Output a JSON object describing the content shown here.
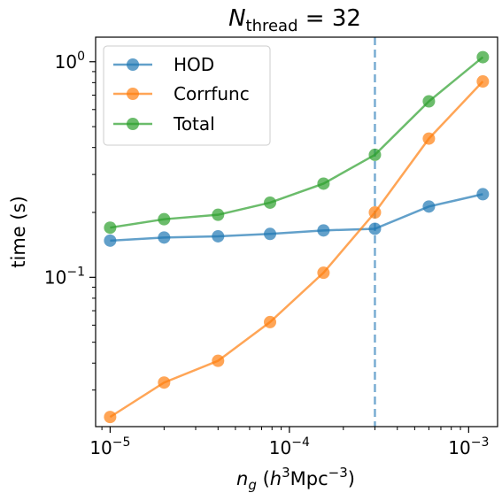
{
  "chart_data": {
    "type": "line",
    "title_base": "N",
    "title_sub": "thread",
    "title_rest": " = 32",
    "xlabel_base": "n",
    "xlabel_sub": "g",
    "xlabel_rest_1": " (",
    "xlabel_h": "h",
    "xlabel_h_exp": "3",
    "xlabel_mpc": "Mpc",
    "xlabel_mpc_exp": "−3",
    "xlabel_close": ")",
    "ylabel": "time (s)",
    "x_scale": "log",
    "y_scale": "log",
    "xlim": [
      8.3e-06,
      0.00145
    ],
    "ylim": [
      0.0203,
      1.3
    ],
    "x_ticks": [
      {
        "value": 1e-05,
        "base": "10",
        "exp": "−5"
      },
      {
        "value": 0.0001,
        "base": "10",
        "exp": "−4"
      },
      {
        "value": 0.001,
        "base": "10",
        "exp": "−3"
      }
    ],
    "y_ticks": [
      {
        "value": 0.1,
        "base": "10",
        "exp": "−1"
      },
      {
        "value": 1,
        "base": "10",
        "exp": "0"
      }
    ],
    "vline": {
      "x": 0.0003,
      "color": "#1f77b4",
      "style": "dashed"
    },
    "legend_position": "upper-left",
    "x": [
      1e-05,
      2e-05,
      4e-05,
      7.8e-05,
      0.000155,
      0.0003,
      0.0006,
      0.0012
    ],
    "series": [
      {
        "name": "HOD",
        "color": "#1f77b4",
        "values": [
          0.148,
          0.153,
          0.155,
          0.159,
          0.165,
          0.168,
          0.213,
          0.243
        ]
      },
      {
        "name": "Corrfunc",
        "color": "#ff7f0e",
        "values": [
          0.0225,
          0.0325,
          0.041,
          0.062,
          0.105,
          0.2,
          0.44,
          0.81
        ]
      },
      {
        "name": "Total",
        "color": "#2ca02c",
        "values": [
          0.17,
          0.186,
          0.195,
          0.222,
          0.272,
          0.37,
          0.655,
          1.05
        ]
      }
    ]
  }
}
